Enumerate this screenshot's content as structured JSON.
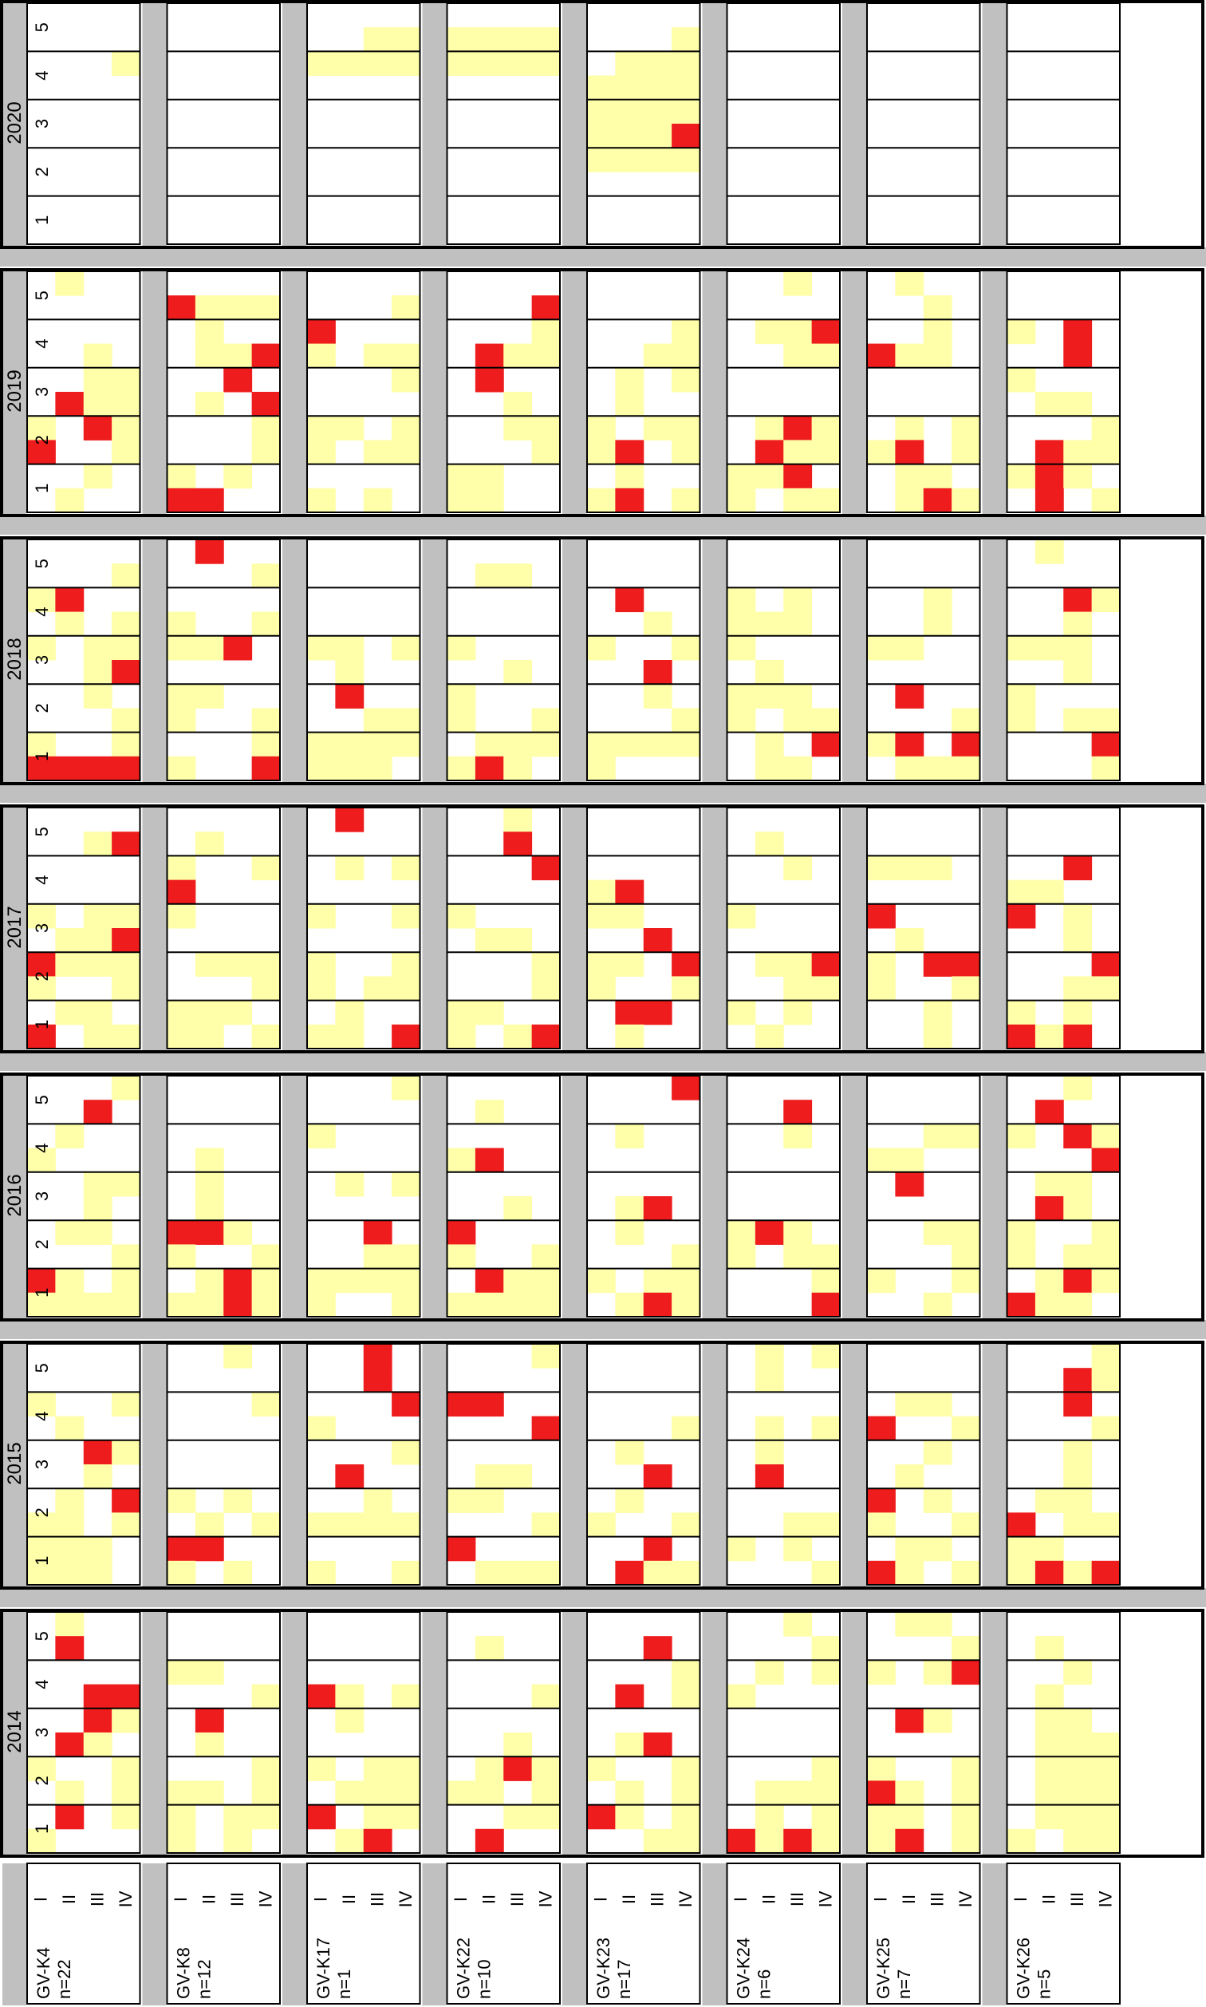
{
  "chart_data": {
    "type": "heatmap",
    "title": "",
    "xlabel": "",
    "ylabel": "",
    "note": "Each panel is a genotype (column) by year (row band). Within a panel the quarter axis runs I-IV and the level axis runs 1-5.",
    "level_ticks": [
      "1",
      "2",
      "3",
      "4",
      "5"
    ],
    "quarter_ticks": [
      "I",
      "II",
      "III",
      "IV"
    ],
    "legend_colors": {
      "high": "#ee1c1c",
      "medium": "#ffffaa",
      "none": "#ffffff",
      "separator": "#c0c0c0"
    },
    "genotypes": [
      {
        "name": "GV-K4",
        "n": "n=22"
      },
      {
        "name": "GV-K8",
        "n": "n=12"
      },
      {
        "name": "GV-K17",
        "n": "n=1"
      },
      {
        "name": "GV-K22",
        "n": "n=10"
      },
      {
        "name": "GV-K23",
        "n": "n=17"
      },
      {
        "name": "GV-K24",
        "n": "n=6"
      },
      {
        "name": "GV-K25",
        "n": "n=7"
      },
      {
        "name": "GV-K26",
        "n": "n=5"
      }
    ],
    "years": [
      "2020",
      "2019",
      "2018",
      "2017",
      "2016",
      "2015",
      "2014"
    ],
    "value_scale": "Each panel has 10 rows (two per level, top row first = level 5 upper half) by 4 columns (quarters I-IV); 0 = none, 1 = yellow, 2 = red.",
    "panels": {
      "2020": [
        [
          "0000",
          "0000",
          "0001",
          "0000",
          "0000",
          "0000",
          "0000",
          "0000",
          "0000",
          "0000"
        ],
        [
          "0000",
          "0000",
          "0000",
          "0000",
          "0000",
          "0000",
          "0000",
          "0000",
          "0000",
          "0000"
        ],
        [
          "0000",
          "0011",
          "1111",
          "0000",
          "0000",
          "0000",
          "0000",
          "0000",
          "0000",
          "0000"
        ],
        [
          "0000",
          "1111",
          "1111",
          "0000",
          "0000",
          "0000",
          "0000",
          "0000",
          "0000",
          "0000"
        ],
        [
          "0000",
          "0001",
          "0111",
          "1111",
          "1111",
          "1112",
          "1111",
          "0000",
          "0000",
          "0000"
        ],
        [
          "0000",
          "0000",
          "0000",
          "0000",
          "0000",
          "0000",
          "0000",
          "0000",
          "0000",
          "0000"
        ],
        [
          "0000",
          "0000",
          "0000",
          "0000",
          "0000",
          "0000",
          "0000",
          "0000",
          "0000",
          "0000"
        ],
        [
          "0000",
          "0000",
          "0000",
          "0000",
          "0000",
          "0000",
          "0000",
          "0000",
          "0000",
          "0000"
        ]
      ]
    }
  },
  "ui": {
    "year_labels": [
      "2020",
      "2019",
      "2018",
      "2017",
      "2016",
      "2015",
      "2014"
    ],
    "level_labels": [
      "1",
      "2",
      "3",
      "4",
      "5"
    ],
    "quarter_labels": [
      "I",
      "II",
      "III",
      "IV"
    ]
  }
}
